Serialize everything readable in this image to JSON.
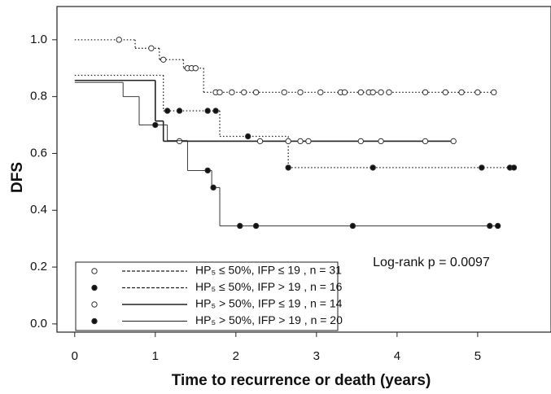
{
  "chart_data": {
    "type": "survival",
    "x_label": "Time to recurrence or death (years)",
    "y_label": "DFS",
    "annotation": "Log-rank p = 0.0097",
    "xlim": [
      -0.22,
      5.91
    ],
    "ylim": [
      -0.029,
      1.117
    ],
    "xticks": [
      0,
      1,
      2,
      3,
      4,
      5
    ],
    "yticks": [
      {
        "value": 0,
        "label": "0.0"
      },
      {
        "value": 0.2,
        "label": "0.2"
      },
      {
        "value": 0.4,
        "label": "0.4"
      },
      {
        "value": 0.6,
        "label": "0.6"
      },
      {
        "value": 0.8,
        "label": "0.8"
      },
      {
        "value": 1,
        "label": "1.0"
      }
    ],
    "legend_position": "lower left",
    "series": [
      {
        "name": "HP₅ ≤ 50%, IFP ≤ 19 , n = 31",
        "marker": "open",
        "dash": "1.5,2.5",
        "width": 1.3,
        "color": "#222",
        "x": [
          0,
          0.75,
          1.05,
          1.35,
          1.6
        ],
        "values": [
          1.0,
          0.97,
          0.93,
          0.9,
          0.815
        ],
        "censor_x": [
          0.55,
          0.95,
          1.1,
          1.4,
          1.45,
          1.5,
          1.75,
          1.8,
          1.95,
          2.1,
          2.25,
          2.6,
          2.8,
          3.05,
          3.3,
          3.35,
          3.55,
          3.65,
          3.7,
          3.8,
          3.9,
          4.35,
          4.6,
          4.8,
          5.0,
          5.2
        ],
        "censor_values": [
          1.0,
          0.97,
          0.93,
          0.9,
          0.9,
          0.9,
          0.815,
          0.815,
          0.815,
          0.815,
          0.815,
          0.815,
          0.815,
          0.815,
          0.815,
          0.815,
          0.815,
          0.815,
          0.815,
          0.815,
          0.815,
          0.815,
          0.815,
          0.815,
          0.815,
          0.815
        ]
      },
      {
        "name": "HP₅ ≤ 50%, IFP > 19 , n = 16",
        "marker": "filled",
        "dash": "1.5,2.5",
        "width": 1.3,
        "color": "#222",
        "x": [
          0,
          1.1,
          1.8,
          2.65
        ],
        "values": [
          0.875,
          0.75,
          0.66,
          0.55
        ],
        "censor_x": [
          1.15,
          1.3,
          1.65,
          1.75,
          2.15,
          2.65,
          3.7,
          5.05,
          5.4,
          5.45
        ],
        "censor_values": [
          0.75,
          0.75,
          0.75,
          0.75,
          0.66,
          0.55,
          0.55,
          0.55,
          0.55,
          0.55
        ]
      },
      {
        "name": "HP₅ > 50%, IFP ≤ 19 , n = 14",
        "marker": "open",
        "dash": "none",
        "width": 1.6,
        "color": "#222",
        "x": [
          0,
          1.0,
          1.1
        ],
        "values": [
          0.857,
          0.714,
          0.643
        ],
        "censor_x": [
          1.3,
          2.3,
          2.65,
          2.8,
          2.9,
          3.55,
          3.8,
          4.35,
          4.7
        ],
        "censor_values": [
          0.643,
          0.643,
          0.643,
          0.643,
          0.643,
          0.643,
          0.643,
          0.643,
          0.643
        ]
      },
      {
        "name": "HP₅ > 50%, IFP > 19 , n = 20",
        "marker": "filled",
        "dash": "none",
        "width": 0.9,
        "color": "#222",
        "x": [
          0,
          0.6,
          0.8,
          1.15,
          1.4,
          1.7,
          1.8
        ],
        "values": [
          0.85,
          0.8,
          0.7,
          0.645,
          0.54,
          0.48,
          0.345
        ],
        "censor_x": [
          1.0,
          1.65,
          1.72,
          2.05,
          2.25,
          3.45,
          5.15,
          5.25
        ],
        "censor_values": [
          0.7,
          0.54,
          0.48,
          0.345,
          0.345,
          0.345,
          0.345,
          0.345
        ]
      }
    ]
  }
}
